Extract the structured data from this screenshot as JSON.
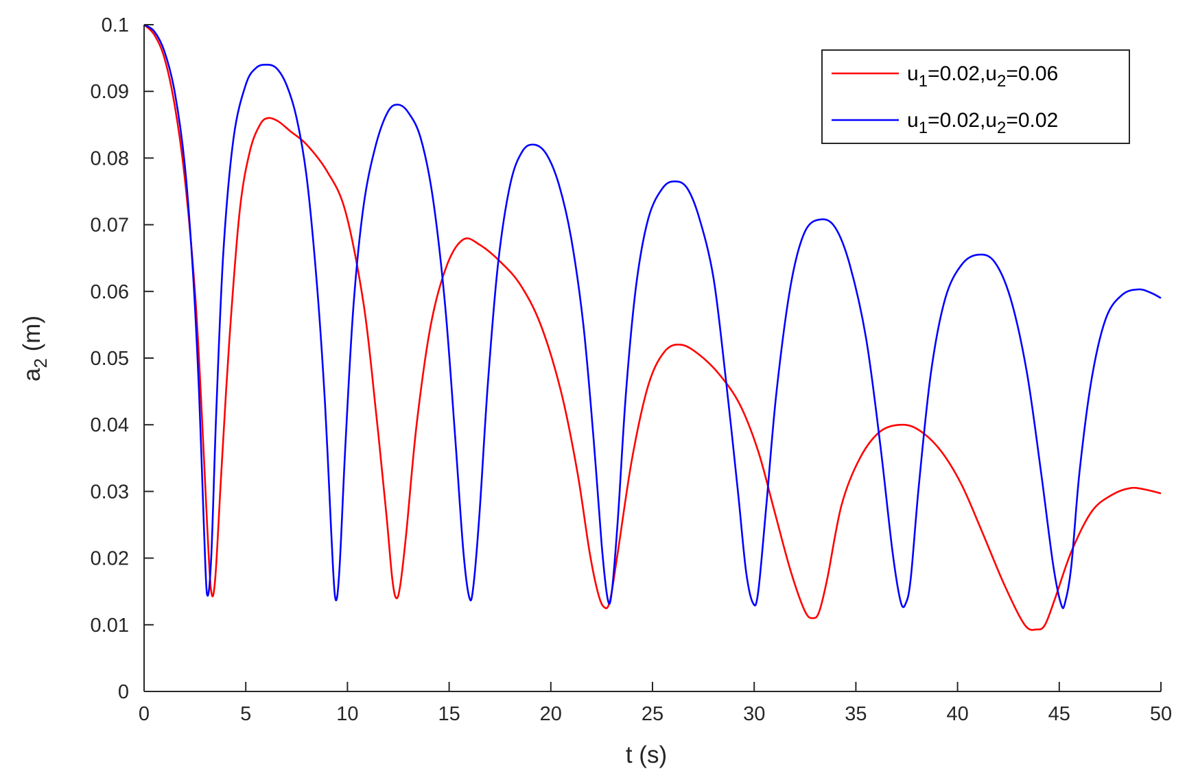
{
  "chart_data": {
    "type": "line",
    "xlabel": "t (s)",
    "ylabel": {
      "base": "a",
      "sub": "2",
      "rest": " (m)"
    },
    "xlim": [
      0,
      50
    ],
    "ylim": [
      0,
      0.1
    ],
    "xticks": [
      "0",
      "5",
      "10",
      "15",
      "20",
      "25",
      "30",
      "35",
      "40",
      "45",
      "50"
    ],
    "yticks": [
      "0",
      "0.01",
      "0.02",
      "0.03",
      "0.04",
      "0.05",
      "0.06",
      "0.07",
      "0.08",
      "0.09",
      "0.1"
    ],
    "grid": false,
    "legend_position": "top-right",
    "series": [
      {
        "legend": [
          {
            "text": "u",
            "sub": false
          },
          {
            "text": "1",
            "sub": true
          },
          {
            "text": "=0.02,u",
            "sub": false
          },
          {
            "text": "2",
            "sub": true
          },
          {
            "text": "=0.06",
            "sub": false
          }
        ],
        "color": "#ff0000",
        "x": [
          0,
          0.5,
          1,
          1.5,
          2,
          2.5,
          2.8,
          3.1,
          3.3,
          3.5,
          3.8,
          4.2,
          4.7,
          5.2,
          5.7,
          6.1,
          6.6,
          7.2,
          8,
          9,
          9.9,
          10.8,
          11.4,
          11.9,
          12.2,
          12.4,
          12.6,
          12.9,
          13.4,
          14.1,
          14.9,
          15.7,
          16.5,
          17.5,
          18.5,
          19.5,
          20.5,
          21.3,
          21.9,
          22.3,
          22.6,
          22.9,
          23.3,
          24,
          24.8,
          25.6,
          26.4,
          27.3,
          28.3,
          29.3,
          30.2,
          31,
          31.8,
          32.5,
          32.9,
          33.2,
          33.6,
          34.3,
          35.2,
          36.2,
          37.3,
          38.2,
          39.2,
          40.2,
          41.2,
          42.3,
          43.3,
          43.9,
          44.3,
          44.8,
          45.6,
          46.6,
          47.6,
          48.5,
          49.2,
          50
        ],
        "y": [
          0.1,
          0.0985,
          0.095,
          0.088,
          0.077,
          0.06,
          0.044,
          0.025,
          0.015,
          0.017,
          0.033,
          0.053,
          0.072,
          0.081,
          0.085,
          0.086,
          0.0855,
          0.084,
          0.082,
          0.078,
          0.072,
          0.058,
          0.042,
          0.027,
          0.017,
          0.014,
          0.016,
          0.024,
          0.04,
          0.055,
          0.064,
          0.0678,
          0.067,
          0.0645,
          0.061,
          0.055,
          0.045,
          0.033,
          0.021,
          0.015,
          0.0127,
          0.0135,
          0.021,
          0.035,
          0.046,
          0.051,
          0.052,
          0.0505,
          0.0475,
          0.043,
          0.036,
          0.027,
          0.018,
          0.012,
          0.011,
          0.012,
          0.017,
          0.028,
          0.035,
          0.039,
          0.04,
          0.039,
          0.036,
          0.031,
          0.024,
          0.016,
          0.01,
          0.0093,
          0.01,
          0.014,
          0.021,
          0.027,
          0.0295,
          0.0305,
          0.0303,
          0.0297
        ]
      },
      {
        "legend": [
          {
            "text": "u",
            "sub": false
          },
          {
            "text": "1",
            "sub": true
          },
          {
            "text": "=0.02,u",
            "sub": false
          },
          {
            "text": "2",
            "sub": true
          },
          {
            "text": "=0.02",
            "sub": false
          }
        ],
        "color": "#0000ff",
        "x": [
          0,
          0.5,
          1,
          1.5,
          2,
          2.4,
          2.7,
          2.95,
          3.1,
          3.3,
          3.55,
          3.9,
          4.4,
          5,
          5.5,
          6,
          6.5,
          7,
          7.5,
          8,
          8.5,
          8.9,
          9.2,
          9.4,
          9.6,
          9.9,
          10.3,
          10.8,
          11.4,
          12,
          12.5,
          13,
          13.6,
          14.2,
          14.8,
          15.3,
          15.7,
          16,
          16.2,
          16.5,
          16.9,
          17.4,
          18,
          18.6,
          19.2,
          19.8,
          20.4,
          21,
          21.6,
          22.1,
          22.5,
          22.8,
          23,
          23.3,
          23.7,
          24.2,
          24.8,
          25.5,
          26.1,
          26.7,
          27.3,
          28,
          28.6,
          29.2,
          29.6,
          29.95,
          30.2,
          30.6,
          31.1,
          31.8,
          32.5,
          33.3,
          34,
          34.7,
          35.5,
          36.2,
          36.8,
          37.2,
          37.45,
          37.7,
          38.1,
          38.7,
          39.4,
          40.2,
          41,
          41.8,
          42.6,
          43.4,
          44.1,
          44.7,
          45.1,
          45.3,
          45.6,
          46,
          46.6,
          47.3,
          48.1,
          48.9,
          49.5,
          50
        ],
        "y": [
          0.1,
          0.099,
          0.096,
          0.09,
          0.079,
          0.063,
          0.045,
          0.024,
          0.0145,
          0.02,
          0.042,
          0.066,
          0.083,
          0.091,
          0.0935,
          0.094,
          0.0935,
          0.091,
          0.086,
          0.077,
          0.061,
          0.043,
          0.024,
          0.014,
          0.018,
          0.037,
          0.058,
          0.073,
          0.082,
          0.087,
          0.088,
          0.0868,
          0.083,
          0.074,
          0.058,
          0.038,
          0.021,
          0.014,
          0.016,
          0.027,
          0.046,
          0.064,
          0.076,
          0.081,
          0.082,
          0.0805,
          0.076,
          0.068,
          0.055,
          0.038,
          0.022,
          0.0138,
          0.015,
          0.026,
          0.045,
          0.061,
          0.071,
          0.0755,
          0.0765,
          0.0755,
          0.071,
          0.062,
          0.047,
          0.03,
          0.018,
          0.0132,
          0.015,
          0.028,
          0.045,
          0.061,
          0.069,
          0.0708,
          0.0695,
          0.064,
          0.053,
          0.037,
          0.021,
          0.0135,
          0.0132,
          0.017,
          0.031,
          0.048,
          0.059,
          0.064,
          0.0655,
          0.0645,
          0.059,
          0.048,
          0.033,
          0.019,
          0.013,
          0.0135,
          0.019,
          0.033,
          0.047,
          0.056,
          0.0595,
          0.0603,
          0.0598,
          0.059
        ]
      }
    ]
  }
}
